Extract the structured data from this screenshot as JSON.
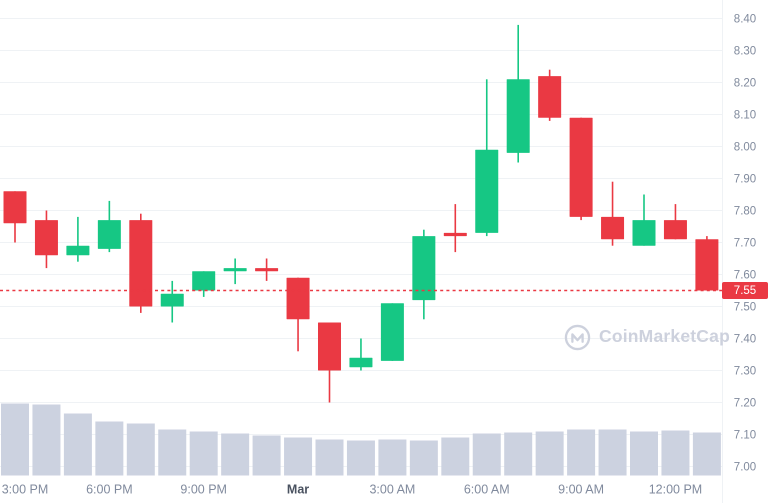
{
  "chart_data": {
    "type": "candlestick",
    "title": "",
    "candle_interval": "1h",
    "grid": "horizontal-only",
    "legend": "none",
    "y_axis": {
      "side": "right",
      "range": [
        7.0,
        8.4
      ],
      "tick_step": 0.1,
      "ticks": [
        "8.40",
        "8.30",
        "8.20",
        "8.10",
        "8.00",
        "7.90",
        "7.80",
        "7.70",
        "7.60",
        "7.50",
        "7.40",
        "7.30",
        "7.20",
        "7.10",
        "7.00"
      ]
    },
    "x_axis": {
      "labels": [
        {
          "index": 0,
          "label": "3:00 PM",
          "bold": false
        },
        {
          "index": 3,
          "label": "6:00 PM",
          "bold": false
        },
        {
          "index": 6,
          "label": "9:00 PM",
          "bold": false
        },
        {
          "index": 9,
          "label": "Mar",
          "bold": true
        },
        {
          "index": 12,
          "label": "3:00 AM",
          "bold": false
        },
        {
          "index": 15,
          "label": "6:00 AM",
          "bold": false
        },
        {
          "index": 18,
          "label": "9:00 AM",
          "bold": false
        },
        {
          "index": 21,
          "label": "12:00 PM",
          "bold": false
        }
      ]
    },
    "current_price": 7.55,
    "candles": [
      {
        "time": "3:00 PM",
        "open": 7.86,
        "high": 7.86,
        "low": 7.7,
        "close": 7.76,
        "volume": 72
      },
      {
        "time": "4:00 PM",
        "open": 7.77,
        "high": 7.8,
        "low": 7.62,
        "close": 7.66,
        "volume": 71
      },
      {
        "time": "5:00 PM",
        "open": 7.66,
        "high": 7.78,
        "low": 7.64,
        "close": 7.69,
        "volume": 62
      },
      {
        "time": "6:00 PM",
        "open": 7.68,
        "high": 7.83,
        "low": 7.67,
        "close": 7.77,
        "volume": 54
      },
      {
        "time": "7:00 PM",
        "open": 7.77,
        "high": 7.79,
        "low": 7.48,
        "close": 7.5,
        "volume": 52
      },
      {
        "time": "8:00 PM",
        "open": 7.5,
        "high": 7.58,
        "low": 7.45,
        "close": 7.54,
        "volume": 46
      },
      {
        "time": "9:00 PM",
        "open": 7.55,
        "high": 7.61,
        "low": 7.53,
        "close": 7.61,
        "volume": 44
      },
      {
        "time": "10:00 PM",
        "open": 7.61,
        "high": 7.65,
        "low": 7.57,
        "close": 7.62,
        "volume": 42
      },
      {
        "time": "11:00 PM",
        "open": 7.62,
        "high": 7.65,
        "low": 7.58,
        "close": 7.61,
        "volume": 40
      },
      {
        "time": "12:00 AM",
        "open": 7.59,
        "high": 7.59,
        "low": 7.36,
        "close": 7.46,
        "volume": 38
      },
      {
        "time": "1:00 AM",
        "open": 7.45,
        "high": 7.45,
        "low": 7.2,
        "close": 7.3,
        "volume": 36
      },
      {
        "time": "2:00 AM",
        "open": 7.31,
        "high": 7.4,
        "low": 7.3,
        "close": 7.34,
        "volume": 35
      },
      {
        "time": "3:00 AM",
        "open": 7.33,
        "high": 7.51,
        "low": 7.33,
        "close": 7.51,
        "volume": 36
      },
      {
        "time": "4:00 AM",
        "open": 7.52,
        "high": 7.74,
        "low": 7.46,
        "close": 7.72,
        "volume": 35
      },
      {
        "time": "5:00 AM",
        "open": 7.73,
        "high": 7.82,
        "low": 7.67,
        "close": 7.72,
        "volume": 38
      },
      {
        "time": "6:00 AM",
        "open": 7.73,
        "high": 8.21,
        "low": 7.72,
        "close": 7.99,
        "volume": 42
      },
      {
        "time": "7:00 AM",
        "open": 7.98,
        "high": 8.38,
        "low": 7.95,
        "close": 8.21,
        "volume": 43
      },
      {
        "time": "8:00 AM",
        "open": 8.22,
        "high": 8.24,
        "low": 8.08,
        "close": 8.09,
        "volume": 44
      },
      {
        "time": "9:00 AM",
        "open": 8.09,
        "high": 8.09,
        "low": 7.77,
        "close": 7.78,
        "volume": 46
      },
      {
        "time": "10:00 AM",
        "open": 7.78,
        "high": 7.89,
        "low": 7.69,
        "close": 7.71,
        "volume": 46
      },
      {
        "time": "11:00 AM",
        "open": 7.69,
        "high": 7.85,
        "low": 7.69,
        "close": 7.77,
        "volume": 44
      },
      {
        "time": "12:00 PM",
        "open": 7.77,
        "high": 7.82,
        "low": 7.71,
        "close": 7.71,
        "volume": 45
      },
      {
        "time": "1:00 PM",
        "open": 7.71,
        "high": 7.72,
        "low": 7.55,
        "close": 7.55,
        "volume": 43
      }
    ],
    "colors": {
      "up": "#16c784",
      "down": "#ea3943",
      "volume_bar": "#ccd2e0",
      "grid": "#eff2f5",
      "axis_text": "#808a9d",
      "axis_text_bold": "#4a5260",
      "current_price_line": "#ea3943",
      "background": "#ffffff"
    }
  },
  "price_badge": {
    "value": "7.55",
    "bg": "#ea3943",
    "text_color": "#ffffff"
  },
  "watermark": {
    "label": "CoinMarketCap",
    "color": "#cdd1dd"
  }
}
